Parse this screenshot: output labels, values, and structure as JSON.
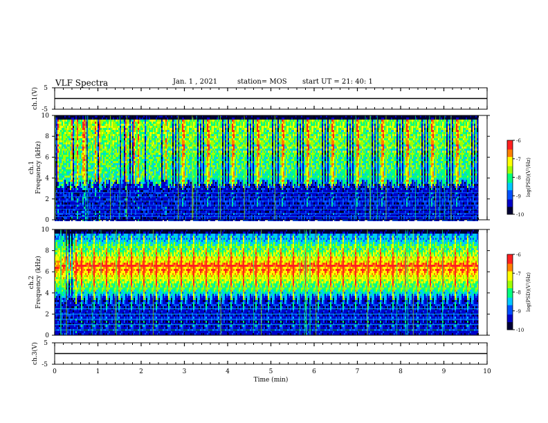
{
  "header": {
    "title": "VLF Spectra",
    "date": "Jan. 1 , 2021",
    "station": "station= MOS",
    "start_time": "start  UT =  21: 40: 1"
  },
  "chart_data": [
    {
      "type": "line",
      "name": "ch1-waveform",
      "ylabel": "ch.1(V)",
      "ylim": [
        -5,
        5
      ],
      "yticks": [
        "5",
        "-5"
      ],
      "x": [
        0,
        10
      ],
      "y": [
        0,
        0
      ]
    },
    {
      "type": "heatmap",
      "name": "ch1-spectrogram",
      "ylabel": "ch.1\nFrequency (kHz)",
      "ylim": [
        0,
        10
      ],
      "yticks": [
        "0",
        "2",
        "4",
        "6",
        "8",
        "10"
      ],
      "xlim": [
        0,
        10
      ],
      "data_end_min": 9.8,
      "colorbar": {
        "label": "log(PSD)(V²/Hz)",
        "range": [
          -10,
          -6
        ],
        "ticks": [
          "-6",
          "-7",
          "-8",
          "-9",
          "-10"
        ]
      },
      "band_khz": [
        3.5,
        9.8
      ],
      "band_peak_log_psd": -7.5,
      "line_tones_khz": [
        0.3,
        0.6,
        1.0,
        1.4,
        1.8,
        2.2,
        2.6
      ]
    },
    {
      "type": "heatmap",
      "name": "ch2-spectrogram",
      "ylabel": "ch.2\nFrequency (kHz)",
      "ylim": [
        0,
        10
      ],
      "yticks": [
        "0",
        "2",
        "4",
        "6",
        "8",
        "10"
      ],
      "xlim": [
        0,
        10
      ],
      "data_end_min": 9.8,
      "colorbar": {
        "label": "log(PSD)(V²/Hz)",
        "range": [
          -10,
          -6
        ],
        "ticks": [
          "-6",
          "-7",
          "-8",
          "-9",
          "-10"
        ]
      },
      "band_khz": [
        3.5,
        9.8
      ],
      "band_center_khz": 6.5,
      "band_peak_log_psd": -6.8,
      "line_tones_khz": [
        0.5,
        1.0,
        1.5,
        2.0,
        2.5
      ]
    },
    {
      "type": "line",
      "name": "ch3-waveform",
      "ylabel": "ch.3(V)",
      "ylim": [
        -5,
        5
      ],
      "yticks": [
        "5",
        "-5"
      ],
      "x": [
        0,
        10
      ],
      "y": [
        0,
        0
      ]
    }
  ],
  "x_axis": {
    "label": "Time (min)",
    "ticks": [
      "0",
      "1",
      "2",
      "3",
      "4",
      "5",
      "6",
      "7",
      "8",
      "9",
      "10"
    ]
  },
  "colormap": [
    "#000033",
    "#0000c8",
    "#0050ff",
    "#00c8ff",
    "#00ff80",
    "#a0ff00",
    "#ffff00",
    "#ff8000",
    "#ff2020",
    "#ffffff"
  ]
}
